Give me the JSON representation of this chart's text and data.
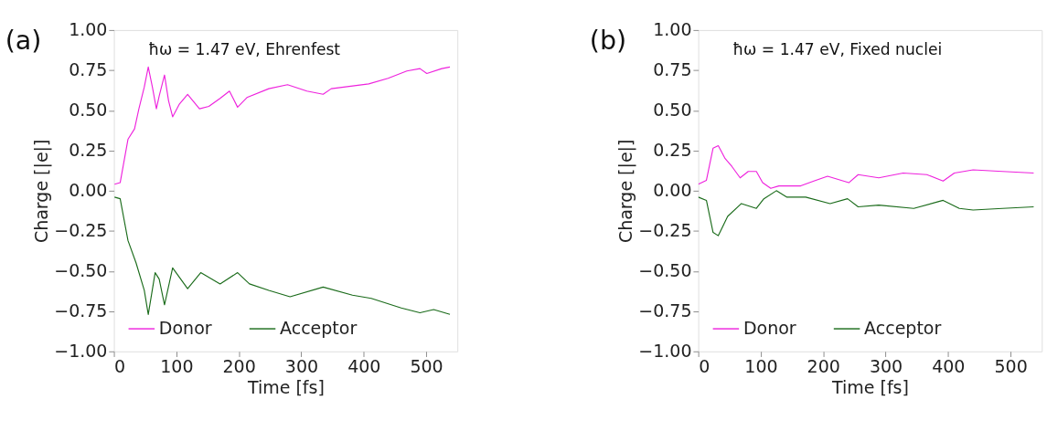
{
  "chart_data": [
    {
      "type": "line",
      "xlabel": "Time [fs]",
      "ylabel": "Charge [|e|]",
      "annotations": [
        "(a)",
        "ħω = 1.47 eV, Ehrenfest"
      ],
      "xlim": [
        0,
        550
      ],
      "ylim": [
        -1,
        1
      ],
      "xticks": [
        0,
        100,
        200,
        300,
        400,
        500
      ],
      "yticks": [
        {
          "value": -1,
          "label": "−1.00"
        },
        {
          "value": -0.75,
          "label": "−0.75"
        },
        {
          "value": -0.5,
          "label": "−0.50"
        },
        {
          "value": -0.25,
          "label": "−0.25"
        },
        {
          "value": 0,
          "label": "0.00"
        },
        {
          "value": 0.25,
          "label": "0.25"
        },
        {
          "value": 0.5,
          "label": "0.50"
        },
        {
          "value": 0.75,
          "label": "0.75"
        },
        {
          "value": 1,
          "label": "1.00"
        }
      ],
      "legend": "bottom",
      "grid": false,
      "series": [
        {
          "name": "Donor",
          "color": "#ee22dd",
          "x": [
            1,
            10,
            22.5,
            33,
            40,
            48.6,
            55,
            61.6,
            68,
            72.5,
            81,
            87.5,
            94,
            105,
            118,
            137,
            152,
            170,
            185,
            198,
            213,
            248,
            278,
            309,
            335,
            348,
            408,
            439,
            469,
            490,
            501,
            525,
            538
          ],
          "values": [
            0.04,
            0.05,
            0.32,
            0.385,
            0.51,
            0.645,
            0.77,
            0.645,
            0.51,
            0.59,
            0.72,
            0.56,
            0.46,
            0.54,
            0.6,
            0.51,
            0.525,
            0.575,
            0.62,
            0.52,
            0.58,
            0.635,
            0.66,
            0.62,
            0.6,
            0.635,
            0.665,
            0.7,
            0.745,
            0.76,
            0.73,
            0.76,
            0.77
          ]
        },
        {
          "name": "Acceptor",
          "color": "#1a6b1a",
          "x": [
            1,
            10,
            22.5,
            35.5,
            48.6,
            55,
            66,
            72.5,
            81,
            94,
            118,
            139,
            170,
            198,
            217,
            248,
            282,
            335,
            382,
            412,
            460,
            490,
            512,
            538
          ],
          "values": [
            -0.04,
            -0.05,
            -0.31,
            -0.45,
            -0.62,
            -0.77,
            -0.51,
            -0.55,
            -0.71,
            -0.48,
            -0.61,
            -0.51,
            -0.58,
            -0.51,
            -0.58,
            -0.62,
            -0.66,
            -0.6,
            -0.65,
            -0.67,
            -0.73,
            -0.76,
            -0.74,
            -0.77
          ]
        }
      ]
    },
    {
      "type": "line",
      "xlabel": "Time [fs]",
      "ylabel": "Charge [|e|]",
      "annotations": [
        "(b)",
        "ħω = 1.47 eV, Fixed nuclei"
      ],
      "xlim": [
        0,
        550
      ],
      "ylim": [
        -1,
        1
      ],
      "xticks": [
        0,
        100,
        200,
        300,
        400,
        500
      ],
      "yticks": [
        {
          "value": -1,
          "label": "−1.00"
        },
        {
          "value": -0.75,
          "label": "−0.75"
        },
        {
          "value": -0.5,
          "label": "−0.50"
        },
        {
          "value": -0.25,
          "label": "−0.25"
        },
        {
          "value": 0,
          "label": "0.00"
        },
        {
          "value": 0.25,
          "label": "0.25"
        },
        {
          "value": 0.5,
          "label": "0.50"
        },
        {
          "value": 0.75,
          "label": "0.75"
        },
        {
          "value": 1,
          "label": "1.00"
        }
      ],
      "legend": "bottom",
      "grid": false,
      "series": [
        {
          "name": "Donor",
          "color": "#ee22dd",
          "x": [
            0,
            13,
            23.7,
            32,
            43,
            54,
            67,
            80,
            93,
            103,
            116,
            129,
            164,
            185,
            207,
            241,
            256,
            289,
            328,
            366,
            392,
            410,
            440,
            487,
            537
          ],
          "values": [
            0.04,
            0.065,
            0.265,
            0.28,
            0.2,
            0.15,
            0.08,
            0.12,
            0.12,
            0.05,
            0.015,
            0.03,
            0.03,
            0.06,
            0.09,
            0.05,
            0.1,
            0.08,
            0.11,
            0.1,
            0.06,
            0.11,
            0.13,
            0.12,
            0.11
          ]
        },
        {
          "name": "Acceptor",
          "color": "#1a6b1a",
          "x": [
            0,
            13,
            23.7,
            32,
            47,
            69,
            93,
            105,
            125,
            142,
            172,
            211,
            239,
            256,
            289,
            345,
            392,
            418,
            440,
            487,
            537
          ],
          "values": [
            -0.04,
            -0.06,
            -0.26,
            -0.28,
            -0.16,
            -0.08,
            -0.11,
            -0.05,
            0.0,
            -0.04,
            -0.04,
            -0.08,
            -0.05,
            -0.1,
            -0.09,
            -0.11,
            -0.06,
            -0.11,
            -0.12,
            -0.11,
            -0.1
          ]
        }
      ]
    }
  ]
}
